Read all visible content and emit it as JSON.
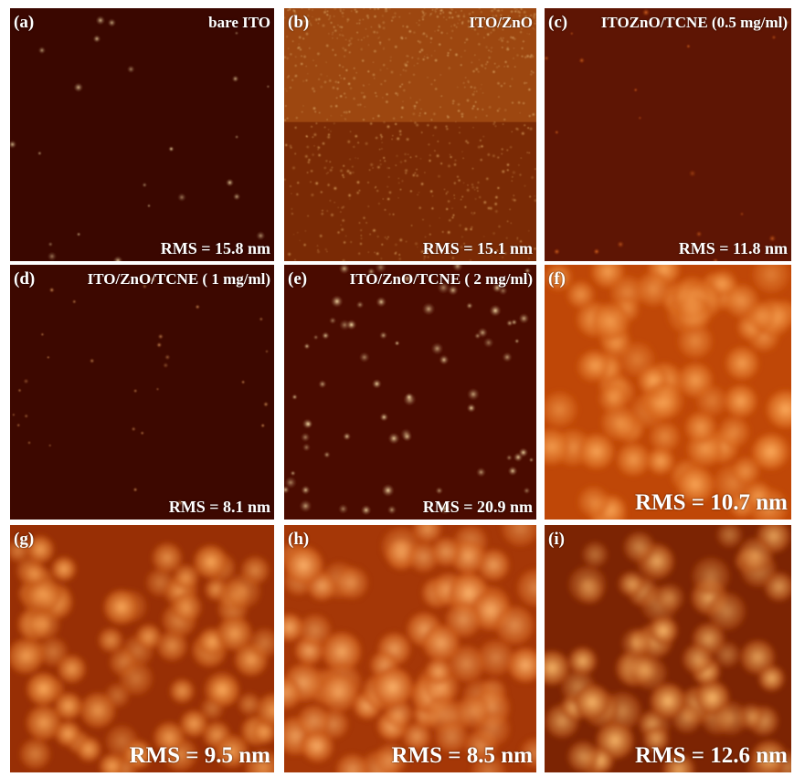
{
  "figure": {
    "panels": [
      {
        "letter": "(a)",
        "title": "bare ITO",
        "rms": "RMS = 15.8 nm",
        "palette": [
          "#2a0400",
          "#ffe8b0"
        ],
        "base": "#3a0700"
      },
      {
        "letter": "(b)",
        "title": "ITO/ZnO",
        "rms": "RMS = 15.1 nm",
        "palette": [
          "#4a1000",
          "#ffcf80"
        ],
        "base": "#7a2a05"
      },
      {
        "letter": "(c)",
        "title": "ITOZnO/TCNE (0.5 mg/ml)",
        "rms": "RMS = 11.8 nm",
        "palette": [
          "#4a0a00",
          "#e06a20"
        ],
        "base": "#5e1504"
      },
      {
        "letter": "(d)",
        "title": "ITO/ZnO/TCNE ( 1 mg/ml)",
        "rms": "RMS = 8.1 nm",
        "palette": [
          "#2e0500",
          "#e6a060"
        ],
        "base": "#3d0800"
      },
      {
        "letter": "(e)",
        "title": "ITO/ZnO/TCNE ( 2 mg/ml)",
        "rms": "RMS = 20.9 nm",
        "palette": [
          "#1e0300",
          "#ffe8b0"
        ],
        "base": "#4a0b00"
      },
      {
        "letter": "(f)",
        "title": "",
        "rms": "RMS = 10.7 nm",
        "palette": [
          "#b03800",
          "#ffb060"
        ],
        "base": "#d05a10"
      },
      {
        "letter": "(g)",
        "title": "",
        "rms": "RMS = 9.5 nm",
        "palette": [
          "#7a1800",
          "#ffb060"
        ],
        "base": "#bc4c0c"
      },
      {
        "letter": "(h)",
        "title": "",
        "rms": "RMS = 8.5 nm",
        "palette": [
          "#8a2000",
          "#ffb870"
        ],
        "base": "#c65210"
      },
      {
        "letter": "(i)",
        "title": "",
        "rms": "RMS = 12.6 nm",
        "palette": [
          "#5a0f00",
          "#ffc070"
        ],
        "base": "#a63e08"
      }
    ]
  }
}
